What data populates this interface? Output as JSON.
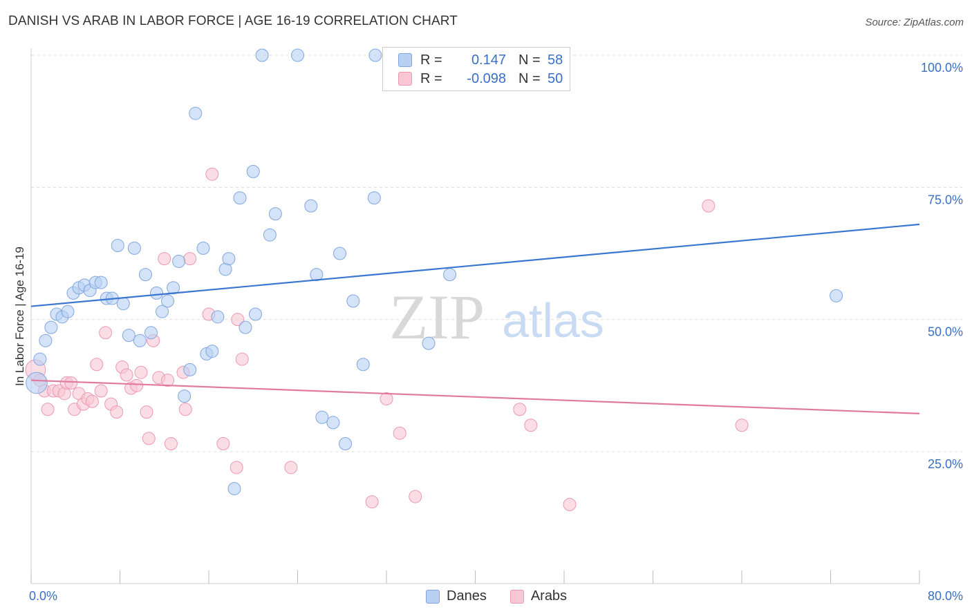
{
  "title": "DANISH VS ARAB IN LABOR FORCE | AGE 16-19 CORRELATION CHART",
  "source": "Source: ZipAtlas.com",
  "watermark": {
    "zip": "ZIP",
    "atlas": "atlas"
  },
  "legend": {
    "r_label": "R =",
    "n_label": "N =",
    "rows": [
      {
        "name": "Danes",
        "r": "0.147",
        "n": "58",
        "fill": "#b8d1f3",
        "stroke": "#7fa6e0"
      },
      {
        "name": "Arabs",
        "r": "-0.098",
        "n": "50",
        "fill": "#f8c6d5",
        "stroke": "#ee97b2"
      }
    ]
  },
  "colors": {
    "blue": "#3a77d0",
    "pink": "#e07a9e",
    "axis_text": "#3a6fc4",
    "grid": "#dddddd",
    "blue_fill": "#b8d1f3",
    "pink_fill": "#f8c6d5"
  },
  "chart_data": {
    "type": "scatter",
    "title": "DANISH VS ARAB IN LABOR FORCE | AGE 16-19 CORRELATION CHART",
    "xlabel": "",
    "ylabel": "In Labor Force | Age 16-19",
    "xlim": [
      0,
      80
    ],
    "ylim": [
      0,
      105
    ],
    "x_tick_labels": [
      "0.0%",
      "80.0%"
    ],
    "y_ticks": [
      25,
      50,
      75,
      100
    ],
    "y_tick_labels": [
      "25.0%",
      "50.0%",
      "75.0%",
      "100.0%"
    ],
    "series": [
      {
        "name": "Danes",
        "color": "#3a77d0",
        "trend": {
          "x": [
            0,
            80
          ],
          "y": [
            52.5,
            68.0
          ]
        },
        "points": [
          [
            0.5,
            38.0,
            1.7
          ],
          [
            0.8,
            42.5,
            1
          ],
          [
            1.3,
            46.0,
            1
          ],
          [
            1.8,
            48.5,
            1
          ],
          [
            2.3,
            51.0,
            1
          ],
          [
            2.8,
            50.5,
            1
          ],
          [
            3.3,
            51.5,
            1
          ],
          [
            3.8,
            55.0,
            1
          ],
          [
            4.3,
            56.0,
            1
          ],
          [
            4.8,
            56.5,
            1
          ],
          [
            5.3,
            55.5,
            1
          ],
          [
            5.8,
            57.0,
            1
          ],
          [
            6.3,
            57.0,
            1
          ],
          [
            6.8,
            54.0,
            1
          ],
          [
            7.3,
            54.0,
            1
          ],
          [
            7.8,
            64.0,
            1
          ],
          [
            8.3,
            53.0,
            1
          ],
          [
            8.8,
            47.0,
            1
          ],
          [
            9.3,
            63.5,
            1
          ],
          [
            9.8,
            46.0,
            1
          ],
          [
            10.3,
            58.5,
            1
          ],
          [
            10.8,
            47.5,
            1
          ],
          [
            11.3,
            55.0,
            1
          ],
          [
            11.8,
            51.5,
            1
          ],
          [
            12.3,
            53.5,
            1
          ],
          [
            12.8,
            56.0,
            1
          ],
          [
            13.3,
            61.0,
            1
          ],
          [
            13.8,
            35.5,
            1
          ],
          [
            14.3,
            40.5,
            1
          ],
          [
            14.8,
            89.0,
            1
          ],
          [
            15.5,
            63.5,
            1
          ],
          [
            15.8,
            43.5,
            1
          ],
          [
            16.3,
            44.0,
            1
          ],
          [
            16.8,
            50.5,
            1
          ],
          [
            17.5,
            59.5,
            1
          ],
          [
            17.8,
            61.5,
            1
          ],
          [
            18.3,
            18.0,
            1
          ],
          [
            18.8,
            73.0,
            1
          ],
          [
            19.3,
            48.5,
            1
          ],
          [
            20.0,
            78.0,
            1
          ],
          [
            20.2,
            51.0,
            1
          ],
          [
            20.8,
            100.0,
            1
          ],
          [
            21.5,
            66.0,
            1
          ],
          [
            22.0,
            70.0,
            1
          ],
          [
            24.0,
            100.0,
            1
          ],
          [
            25.2,
            71.5,
            1
          ],
          [
            25.7,
            58.5,
            1
          ],
          [
            26.2,
            31.5,
            1
          ],
          [
            27.2,
            30.5,
            1
          ],
          [
            27.8,
            62.5,
            1
          ],
          [
            28.3,
            26.5,
            1
          ],
          [
            29.0,
            53.5,
            1
          ],
          [
            29.9,
            41.5,
            1
          ],
          [
            30.9,
            73.0,
            1
          ],
          [
            31.0,
            100.0,
            1
          ],
          [
            35.8,
            45.5,
            1
          ],
          [
            37.7,
            58.5,
            1
          ],
          [
            72.5,
            54.5,
            1
          ]
        ]
      },
      {
        "name": "Arabs",
        "color": "#e07a9e",
        "trend": {
          "x": [
            0,
            80
          ],
          "y": [
            38.5,
            32.2
          ]
        },
        "points": [
          [
            0.4,
            40.5,
            1.6
          ],
          [
            0.8,
            38.5,
            1
          ],
          [
            1.2,
            36.5,
            1
          ],
          [
            1.5,
            33.0,
            1
          ],
          [
            2.0,
            36.5,
            1
          ],
          [
            2.5,
            36.5,
            1
          ],
          [
            3.0,
            36.0,
            1
          ],
          [
            3.2,
            38.0,
            1
          ],
          [
            3.6,
            38.0,
            1
          ],
          [
            3.9,
            33.0,
            1
          ],
          [
            4.3,
            36.0,
            1
          ],
          [
            4.7,
            34.0,
            1
          ],
          [
            5.1,
            35.0,
            1
          ],
          [
            5.5,
            34.5,
            1
          ],
          [
            5.9,
            41.5,
            1
          ],
          [
            6.3,
            36.5,
            1
          ],
          [
            6.7,
            47.5,
            1
          ],
          [
            7.2,
            34.0,
            1
          ],
          [
            7.7,
            32.5,
            1
          ],
          [
            8.2,
            41.0,
            1
          ],
          [
            8.6,
            39.5,
            1
          ],
          [
            9.0,
            37.0,
            1
          ],
          [
            9.5,
            37.5,
            1
          ],
          [
            9.9,
            40.0,
            1
          ],
          [
            10.4,
            32.5,
            1
          ],
          [
            10.6,
            27.5,
            1
          ],
          [
            11.0,
            46.0,
            1
          ],
          [
            11.5,
            39.0,
            1
          ],
          [
            12.0,
            61.5,
            1
          ],
          [
            12.3,
            38.5,
            1
          ],
          [
            12.6,
            26.5,
            1
          ],
          [
            13.7,
            40.0,
            1
          ],
          [
            13.9,
            33.0,
            1
          ],
          [
            14.3,
            61.5,
            1
          ],
          [
            16.0,
            51.0,
            1
          ],
          [
            16.3,
            77.5,
            1
          ],
          [
            17.3,
            26.5,
            1
          ],
          [
            18.5,
            22.0,
            1
          ],
          [
            18.6,
            50.0,
            1
          ],
          [
            19.0,
            42.5,
            1
          ],
          [
            23.4,
            22.0,
            1
          ],
          [
            30.7,
            15.5,
            1
          ],
          [
            32.0,
            35.0,
            1
          ],
          [
            33.2,
            28.5,
            1
          ],
          [
            34.6,
            16.5,
            1
          ],
          [
            44.0,
            33.0,
            1
          ],
          [
            45.0,
            30.0,
            1
          ],
          [
            48.5,
            15.0,
            1
          ],
          [
            61.0,
            71.5,
            1
          ],
          [
            64.0,
            30.0,
            1
          ]
        ]
      }
    ]
  }
}
